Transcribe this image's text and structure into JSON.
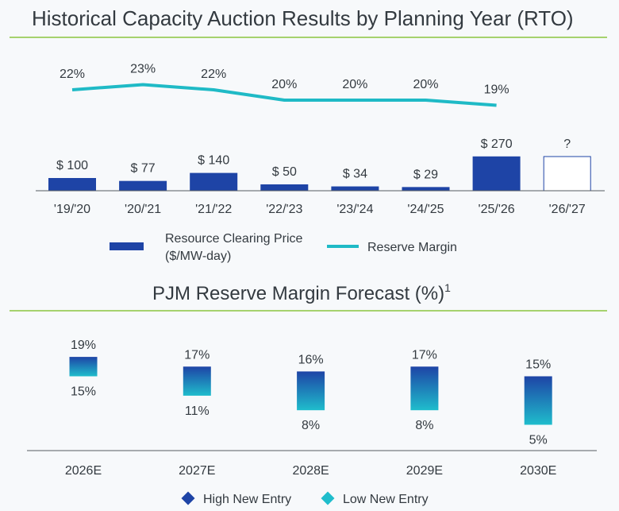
{
  "colors": {
    "bar": "#1e44a6",
    "line": "#1fbac6",
    "rule": "#8cc63f",
    "axis": "#555b62",
    "high": "#1e44a6",
    "low": "#1fbdcc"
  },
  "chart_data": [
    {
      "type": "bar",
      "title": "Historical Capacity Auction Results by Planning Year (RTO)",
      "categories": [
        "'19/'20",
        "'20/'21",
        "'21/'22",
        "'22/'23",
        "'23/'24",
        "'24/'25",
        "'25/'26",
        "'26/'27"
      ],
      "series": [
        {
          "name": "Resource Clearing Price ($/MW-day)",
          "type": "bar",
          "values": [
            100,
            77,
            140,
            50,
            34,
            29,
            270,
            null
          ],
          "labels": [
            "$ 100",
            "$ 77",
            "$ 140",
            "$ 50",
            "$ 34",
            "$ 29",
            "$ 270",
            "?"
          ]
        },
        {
          "name": "Reserve Margin",
          "type": "line",
          "values": [
            22,
            23,
            22,
            20,
            20,
            20,
            19,
            null
          ],
          "labels": [
            "22%",
            "23%",
            "22%",
            "20%",
            "20%",
            "20%",
            "19%",
            ""
          ]
        }
      ],
      "legend": {
        "bar_line1": "Resource Clearing Price",
        "bar_line2": "($/MW-day)",
        "line": "Reserve Margin",
        "placement": "bottom"
      }
    },
    {
      "type": "bar",
      "subtype": "range",
      "title": "PJM Reserve Margin Forecast (%)",
      "title_sup": "1",
      "categories": [
        "2026E",
        "2027E",
        "2028E",
        "2029E",
        "2030E"
      ],
      "series": [
        {
          "name": "High New Entry",
          "values": [
            19,
            17,
            16,
            17,
            15
          ],
          "labels": [
            "19%",
            "17%",
            "16%",
            "17%",
            "15%"
          ]
        },
        {
          "name": "Low New Entry",
          "values": [
            15,
            11,
            8,
            8,
            5
          ],
          "labels": [
            "15%",
            "11%",
            "8%",
            "8%",
            "5%"
          ]
        }
      ],
      "legend": {
        "high": "High New Entry",
        "low": "Low New Entry",
        "placement": "bottom"
      }
    }
  ]
}
